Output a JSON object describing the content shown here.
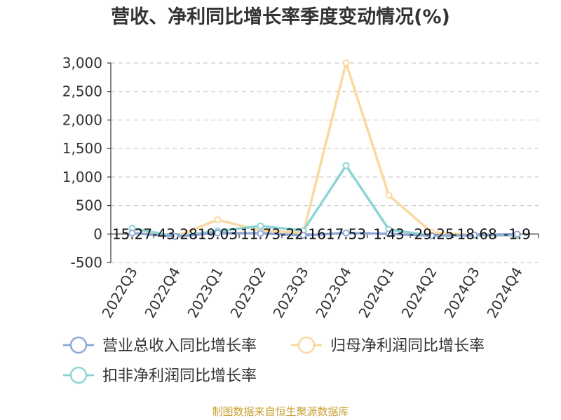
{
  "chart_data": {
    "type": "line",
    "title": "营收、净利同比增长率季度变动情况(%)",
    "categories": [
      "2022Q3",
      "2022Q4",
      "2023Q1",
      "2023Q2",
      "2023Q3",
      "2023Q4",
      "2024Q1",
      "2024Q2",
      "2024Q3",
      "2024Q4"
    ],
    "series": [
      {
        "name": "营业总收入同比增长率",
        "color": "#8fa8d9",
        "values": [
          15.27,
          -43.28,
          19.03,
          11.73,
          -22.16,
          17.53,
          1.43,
          -29.25,
          -18.68,
          -1.9
        ],
        "labels": [
          "15.27",
          "-43.28",
          "19.03",
          "11.73",
          "-22.16",
          "17.53",
          "1.43",
          "-29.25",
          "-18.68",
          "-1.9"
        ]
      },
      {
        "name": "归母净利润同比增长率",
        "color": "#f9d9a0",
        "values": [
          90,
          -50,
          250,
          60,
          20,
          3000,
          680,
          30,
          -20,
          -30
        ]
      },
      {
        "name": "扣非净利润同比增长率",
        "color": "#8dd4d6",
        "values": [
          100,
          -40,
          50,
          140,
          60,
          1200,
          80,
          -30,
          -20,
          -20
        ]
      }
    ],
    "ylim": [
      -500,
      3000
    ],
    "yticks": [
      -500,
      0,
      500,
      1000,
      1500,
      2000,
      2500,
      3000
    ],
    "ytick_labels": [
      "-500",
      "0",
      "500",
      "1,000",
      "1,500",
      "2,000",
      "2,500",
      "3,000"
    ],
    "grid": true,
    "legend_position": "bottom"
  },
  "footer": {
    "source": "制图数据来自恒生聚源数据库"
  }
}
